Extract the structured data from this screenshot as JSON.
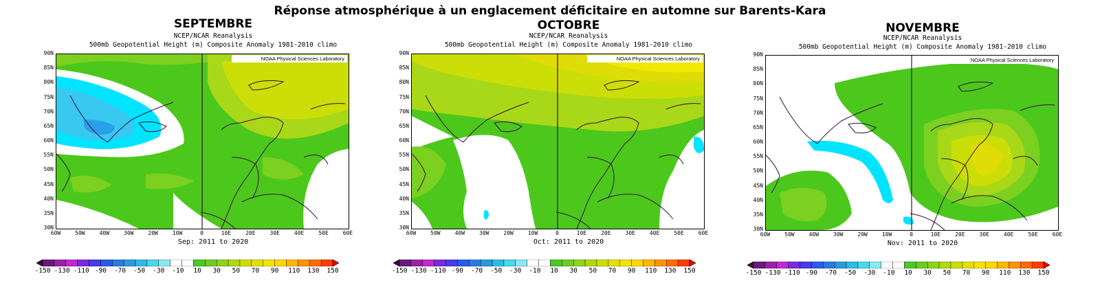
{
  "main_title": "Réponse atmosphérique à un englacement déficitaire en automne sur Barents-Kara",
  "panels": [
    {
      "month": "SEPTEMBRE",
      "dataset": "NCEP/NCAR Reanalysis",
      "variable": "500mb Geopotential Height (m) Composite Anomaly 1981-2010 climo",
      "credit": "NOAA Physical Sciences Laboratory",
      "period": "Sep: 2011 to 2020"
    },
    {
      "month": "OCTOBRE",
      "dataset": "NCEP/NCAR Reanalysis",
      "variable": "500mb Geopotential Height (m) Composite Anomaly 1981-2010 climo",
      "credit": "NOAA Physical Sciences Laboratory",
      "period": "Oct: 2011 to 2020"
    },
    {
      "month": "NOVEMBRE",
      "dataset": "NCEP/NCAR Reanalysis",
      "variable": "500mb Geopotential Height (m) Composite Anomaly 1981-2010 climo",
      "credit": "NOAA Physical Sciences Laboratory",
      "period": "Nov: 2011 to 2020"
    }
  ],
  "lat_ticks": [
    "90N",
    "85N",
    "80N",
    "75N",
    "70N",
    "65N",
    "60N",
    "55N",
    "50N",
    "45N",
    "40N",
    "35N",
    "30N"
  ],
  "lon_ticks": [
    "60W",
    "50W",
    "40W",
    "30W",
    "20W",
    "10W",
    "0",
    "10E",
    "20E",
    "30E",
    "40E",
    "50E",
    "60E"
  ],
  "colorbar": {
    "labels": [
      "-150",
      "-130",
      "-110",
      "-90",
      "-70",
      "-50",
      "-30",
      "-10",
      "10",
      "30",
      "50",
      "70",
      "90",
      "110",
      "130",
      "150"
    ],
    "colors": [
      "#3a0a3e",
      "#6a1a7a",
      "#9a22a8",
      "#c02ad0",
      "#7a2ae0",
      "#4a3ae8",
      "#2a5ae8",
      "#2a7ae0",
      "#2a9ae0",
      "#2abce8",
      "#4ad8ec",
      "#8ae8f4",
      "#ffffff",
      "#ffffff",
      "#4ac828",
      "#6ccc20",
      "#8ed418",
      "#b0da10",
      "#ccde08",
      "#e4e004",
      "#f4e400",
      "#ffd800",
      "#ffb800",
      "#ff9400",
      "#ff6c00",
      "#ff3c00",
      "#f40000"
    ]
  },
  "map_colors": {
    "land_line": "#3a0a3e",
    "white": "#ffffff",
    "light_cyan": "#00e4ff",
    "cyan2": "#38c8f0",
    "blue": "#2aa0e8",
    "green": "#4cc81c",
    "light_green": "#7cd020",
    "yellow_green": "#a8d818",
    "yellow": "#e0dc08",
    "bright_yellow": "#f0ea00"
  }
}
